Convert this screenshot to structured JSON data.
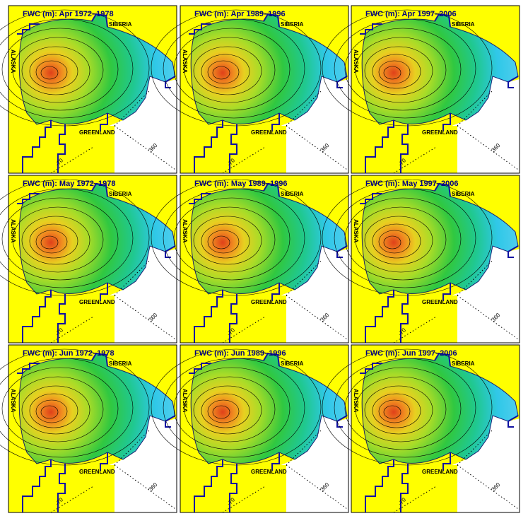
{
  "panels": [
    {
      "title": "FWC (m): Apr 1972–1978",
      "siberia": "SIBERIA",
      "alaska": "ALASKA",
      "greenland": "GREENLAND",
      "meridian": "360",
      "latitude": "-70"
    },
    {
      "title": "FWC (m): Apr 1989–1996",
      "siberia": "SIBERIA",
      "alaska": "ALASKA",
      "greenland": "GREENLAND",
      "meridian": "360",
      "latitude": "-70"
    },
    {
      "title": "FWC (m): Apr 1997–2006",
      "siberia": "SIBERIA",
      "alaska": "ALASKA",
      "greenland": "GREENLAND",
      "meridian": "360",
      "latitude": "-70"
    },
    {
      "title": "FWC (m): May 1972–1978",
      "siberia": "SIBERIA",
      "alaska": "ALASKA",
      "greenland": "GREENLAND",
      "meridian": "360",
      "latitude": "-70"
    },
    {
      "title": "FWC (m): May 1989–1996",
      "siberia": "SIBERIA",
      "alaska": "ALASKA",
      "greenland": "GREENLAND",
      "meridian": "360",
      "latitude": "-70"
    },
    {
      "title": "FWC (m): May 1997–2006",
      "siberia": "SIBERIA",
      "alaska": "ALASKA",
      "greenland": "GREENLAND",
      "meridian": "360",
      "latitude": "-70"
    },
    {
      "title": "FWC (m): Jun 1972–1978",
      "siberia": "SIBERIA",
      "alaska": "ALASKA",
      "greenland": "GREENLAND",
      "meridian": "360",
      "latitude": "-70"
    },
    {
      "title": "FWC (m): Jun 1989–1996",
      "siberia": "SIBERIA",
      "alaska": "ALASKA",
      "greenland": "GREENLAND",
      "meridian": "360",
      "latitude": "-70"
    },
    {
      "title": "FWC (m): Jun 1997–2006",
      "siberia": "SIBERIA",
      "alaska": "ALASKA",
      "greenland": "GREENLAND",
      "meridian": "360",
      "latitude": "-70"
    }
  ]
}
